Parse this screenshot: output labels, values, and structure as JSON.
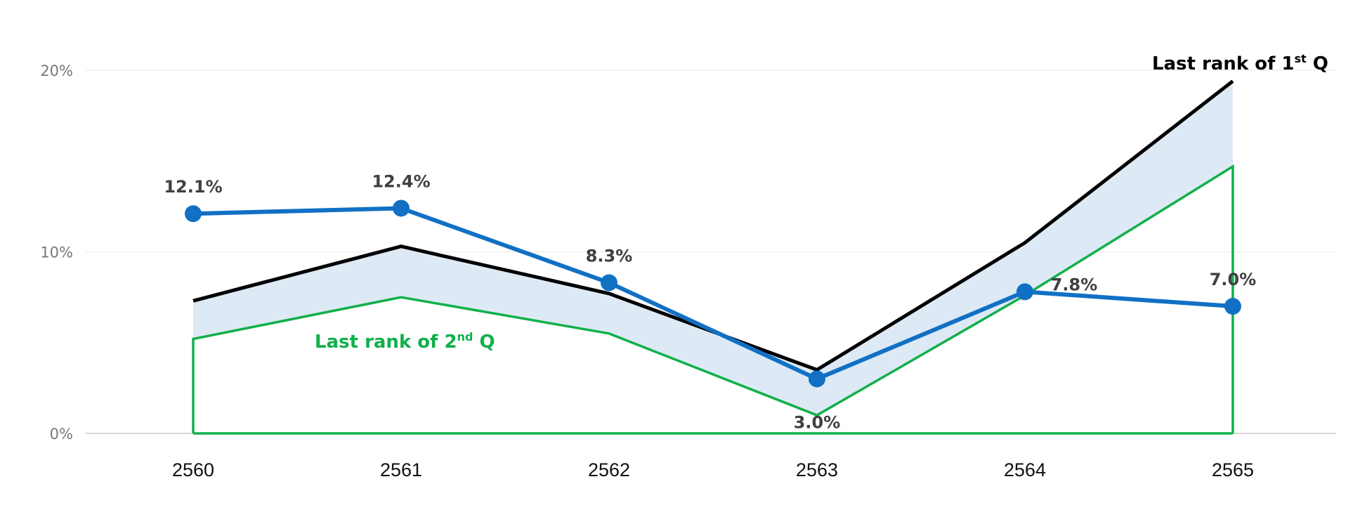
{
  "chart_data": {
    "type": "line",
    "title": "",
    "xlabel": "",
    "ylabel": "",
    "categories": [
      "2560",
      "2561",
      "2562",
      "2563",
      "2564",
      "2565"
    ],
    "y_ticks": [
      "0%",
      "10%",
      "20%"
    ],
    "ylim": [
      0,
      20
    ],
    "grid": true,
    "series": [
      {
        "values": [
          12.1,
          12.4,
          8.3,
          3.0,
          7.8,
          7.0
        ],
        "color": "#1170c4",
        "data_labels": [
          "12.1%",
          "12.4%",
          "8.3%",
          "3.0%",
          "7.8%",
          "7.0%"
        ]
      },
      {
        "values": [
          7.3,
          10.3,
          7.7,
          3.5,
          10.5,
          19.4
        ],
        "color": "#000000"
      },
      {
        "values": [
          5.2,
          7.5,
          5.5,
          1.0,
          7.6,
          14.7
        ],
        "color": "#11b04a"
      }
    ],
    "band_fill": "#dde9f5",
    "annotations": {
      "q1": {
        "prefix": "Last rank of 1",
        "sup": "st",
        "suffix": " Q",
        "color": "#000000"
      },
      "q2": {
        "prefix": "Last rank of 2",
        "sup": "nd",
        "suffix": " Q",
        "color": "#11b04a"
      }
    }
  }
}
